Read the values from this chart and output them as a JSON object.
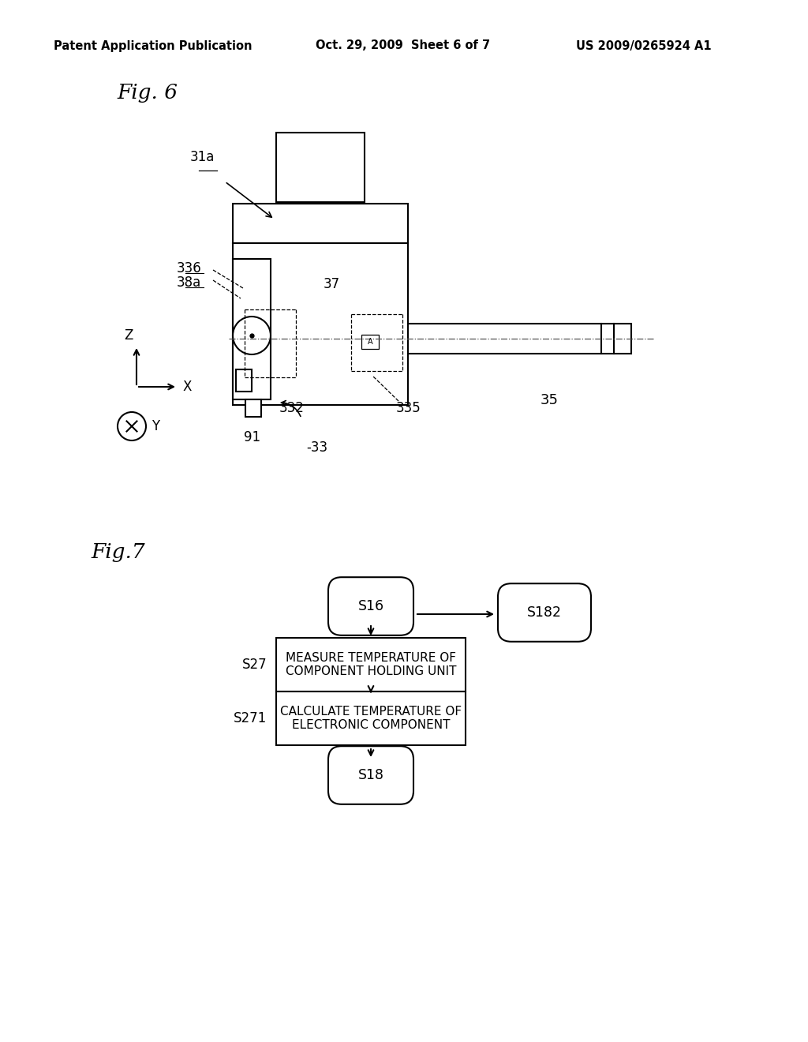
{
  "bg_color": "#ffffff",
  "header_left": "Patent Application Publication",
  "header_center": "Oct. 29, 2009  Sheet 6 of 7",
  "header_right": "US 2009/0265924 A1",
  "fig6_label": "Fig. 6",
  "fig7_label": "Fig.7",
  "flowchart": {
    "s16_label": "S16",
    "s182_label": "S182",
    "s27_label": "S27",
    "s27_text": "MEASURE TEMPERATURE OF\nCOMPONENT HOLDING UNIT",
    "s271_label": "S271",
    "s271_text": "CALCULATE TEMPERATURE OF\nELECTRONIC COMPONENT",
    "s18_label": "S18"
  },
  "diagram": {
    "label_31a": "31a",
    "label_336": "336",
    "label_38a": "38a",
    "label_37": "37",
    "label_332": "332",
    "label_335": "335",
    "label_35": "35",
    "label_91": "91",
    "label_33": "33",
    "label_Z": "Z",
    "label_X": "X",
    "label_Y": "Y"
  }
}
